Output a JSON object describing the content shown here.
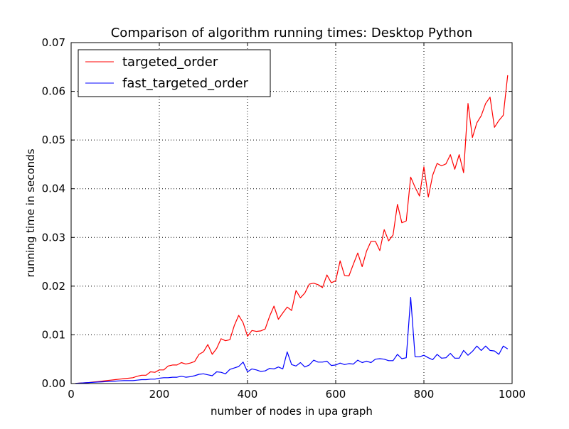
{
  "chart_data": {
    "type": "line",
    "title": "Comparison of algorithm running times: Desktop Python",
    "xlabel": "number of nodes in upa graph",
    "ylabel": "running time in seconds",
    "xlim": [
      0,
      1000
    ],
    "ylim": [
      0,
      0.07
    ],
    "xticks": [
      0,
      200,
      400,
      600,
      800,
      1000
    ],
    "xtick_labels": [
      "0",
      "200",
      "400",
      "600",
      "800",
      "1000"
    ],
    "yticks": [
      0,
      0.01,
      0.02,
      0.03,
      0.04,
      0.05,
      0.06,
      0.07
    ],
    "ytick_labels": [
      "0.00",
      "0.01",
      "0.02",
      "0.03",
      "0.04",
      "0.05",
      "0.06",
      "0.07"
    ],
    "grid": true,
    "legend_position": "top-left",
    "x": [
      10,
      20,
      30,
      40,
      50,
      60,
      70,
      80,
      90,
      100,
      110,
      120,
      130,
      140,
      150,
      160,
      170,
      180,
      190,
      200,
      210,
      220,
      230,
      240,
      250,
      260,
      270,
      280,
      290,
      300,
      310,
      320,
      330,
      340,
      350,
      360,
      370,
      380,
      390,
      400,
      410,
      420,
      430,
      440,
      450,
      460,
      470,
      480,
      490,
      500,
      510,
      520,
      530,
      540,
      550,
      560,
      570,
      580,
      590,
      600,
      610,
      620,
      630,
      640,
      650,
      660,
      670,
      680,
      690,
      700,
      710,
      720,
      730,
      740,
      750,
      760,
      770,
      780,
      790,
      800,
      810,
      820,
      830,
      840,
      850,
      860,
      870,
      880,
      890,
      900,
      910,
      920,
      930,
      940,
      950,
      960,
      970,
      980,
      990
    ],
    "series": [
      {
        "name": "targeted_order",
        "color": "#ff0000",
        "values": [
          5e-05,
          0.0001,
          0.00015,
          0.0002,
          0.0003,
          0.0004,
          0.0005,
          0.0006,
          0.0007,
          0.0008,
          0.0009,
          0.001,
          0.0011,
          0.0012,
          0.0015,
          0.0017,
          0.0017,
          0.0024,
          0.0023,
          0.0028,
          0.0028,
          0.0036,
          0.0038,
          0.0038,
          0.0043,
          0.004,
          0.0042,
          0.0045,
          0.006,
          0.0065,
          0.008,
          0.006,
          0.0072,
          0.0092,
          0.0088,
          0.009,
          0.0119,
          0.014,
          0.0125,
          0.0097,
          0.0109,
          0.0107,
          0.0108,
          0.0112,
          0.0138,
          0.0159,
          0.0132,
          0.0145,
          0.0157,
          0.015,
          0.0191,
          0.0176,
          0.0186,
          0.0204,
          0.0206,
          0.0203,
          0.0197,
          0.0223,
          0.0207,
          0.0211,
          0.0252,
          0.0222,
          0.0221,
          0.0245,
          0.0268,
          0.024,
          0.0272,
          0.0292,
          0.0292,
          0.0273,
          0.0316,
          0.0293,
          0.0305,
          0.0368,
          0.033,
          0.0334,
          0.0424,
          0.0403,
          0.0385,
          0.0445,
          0.0383,
          0.0428,
          0.0452,
          0.0447,
          0.0451,
          0.047,
          0.044,
          0.047,
          0.0433,
          0.0575,
          0.0505,
          0.0535,
          0.055,
          0.0575,
          0.0588,
          0.0526,
          0.054,
          0.0551,
          0.0633
        ]
      },
      {
        "name": "fast_targeted_order",
        "color": "#0000ff",
        "values": [
          5e-05,
          0.0001,
          0.00015,
          0.0002,
          0.00025,
          0.0003,
          0.00035,
          0.0004,
          0.00045,
          0.0005,
          0.00055,
          0.0006,
          0.0006,
          0.0006,
          0.0007,
          0.0008,
          0.0008,
          0.0009,
          0.0009,
          0.0011,
          0.0012,
          0.0012,
          0.0013,
          0.0013,
          0.0015,
          0.0013,
          0.0014,
          0.0016,
          0.0019,
          0.002,
          0.0018,
          0.0016,
          0.0024,
          0.0023,
          0.002,
          0.0029,
          0.0032,
          0.0035,
          0.0044,
          0.0024,
          0.003,
          0.0028,
          0.0025,
          0.0026,
          0.0031,
          0.003,
          0.0034,
          0.003,
          0.0065,
          0.0039,
          0.0036,
          0.0043,
          0.0034,
          0.0038,
          0.0048,
          0.0044,
          0.0044,
          0.0046,
          0.0037,
          0.0038,
          0.0042,
          0.0039,
          0.0041,
          0.004,
          0.0048,
          0.0043,
          0.0046,
          0.0043,
          0.005,
          0.0051,
          0.005,
          0.0047,
          0.0047,
          0.006,
          0.0051,
          0.0053,
          0.0177,
          0.0055,
          0.0055,
          0.0058,
          0.0053,
          0.0049,
          0.006,
          0.0052,
          0.0053,
          0.0062,
          0.0052,
          0.0052,
          0.0068,
          0.0058,
          0.0066,
          0.0077,
          0.0068,
          0.0077,
          0.0068,
          0.0067,
          0.006,
          0.0077,
          0.0071
        ]
      }
    ]
  }
}
